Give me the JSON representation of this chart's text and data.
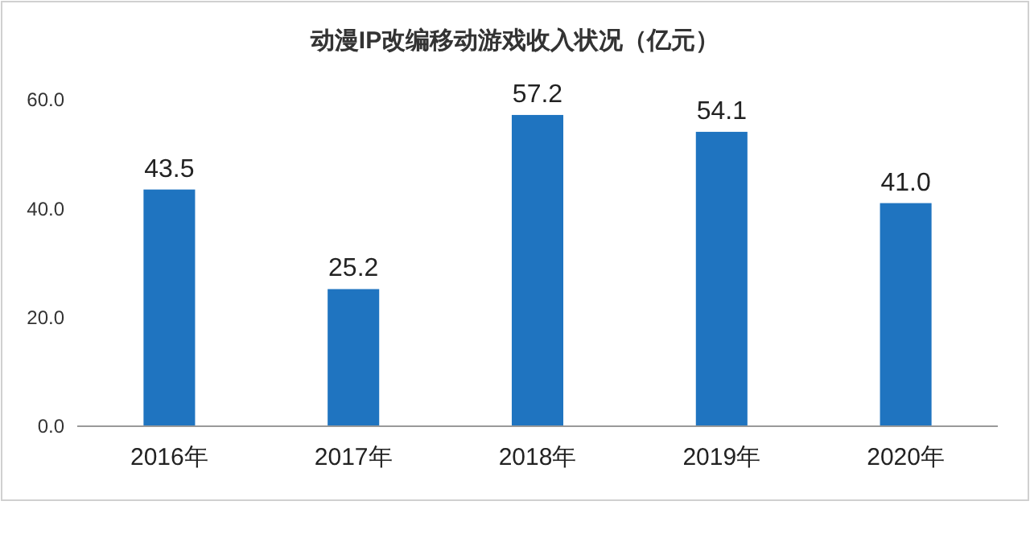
{
  "chart_data": {
    "type": "bar",
    "title": "动漫IP改编移动游戏收入状况（亿元）",
    "categories": [
      "2016年",
      "2017年",
      "2018年",
      "2019年",
      "2020年"
    ],
    "values": [
      43.5,
      25.2,
      57.2,
      54.1,
      41.0
    ],
    "value_labels": [
      "43.5",
      "25.2",
      "57.2",
      "54.1",
      "41.0"
    ],
    "color": "#1f74c0",
    "ylim": [
      0,
      60
    ],
    "yticks": [
      {
        "value": 0,
        "label": "0.0"
      },
      {
        "value": 20,
        "label": "20.0"
      },
      {
        "value": 40,
        "label": "40.0"
      },
      {
        "value": 60,
        "label": "60.0"
      }
    ],
    "grid": false
  }
}
